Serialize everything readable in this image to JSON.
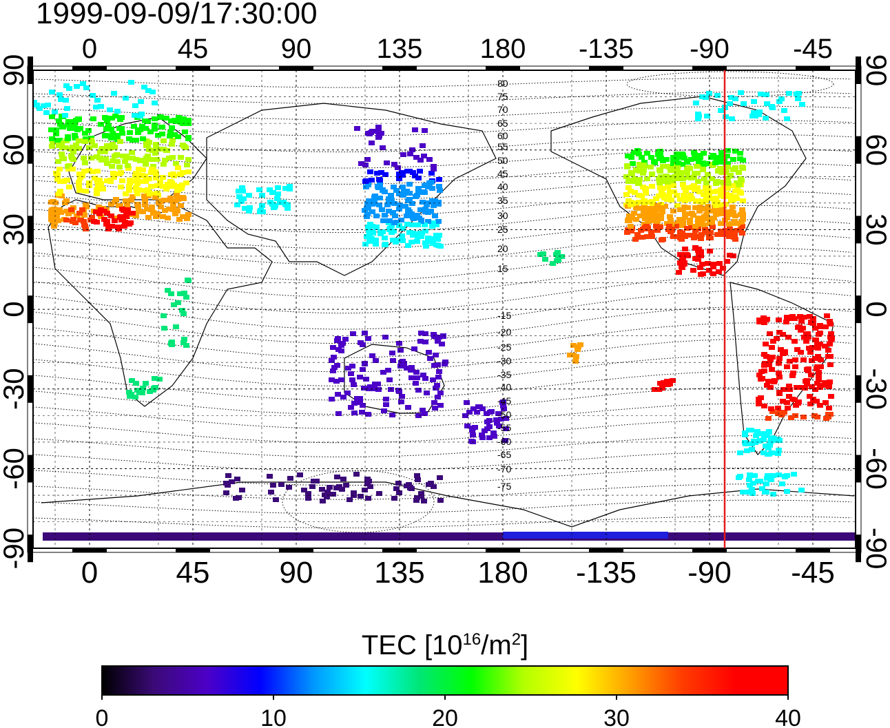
{
  "timestamp": "1999-09-09/17:30:00",
  "map": {
    "lon_ticks": [
      "0",
      "45",
      "90",
      "135",
      "180",
      "-135",
      "-90",
      "-45"
    ],
    "lat_ticks": [
      "90",
      "60",
      "30",
      "0",
      "-30",
      "-60",
      "-90"
    ],
    "contour_labels": [
      "80",
      "75",
      "70",
      "65",
      "60",
      "55",
      "50",
      "45",
      "40",
      "35",
      "30",
      "25",
      "20",
      "15",
      "-15",
      "-20",
      "-25",
      "-30",
      "-35",
      "-40",
      "-45",
      "-50",
      "-55",
      "-60",
      "-65",
      "-70",
      "-75"
    ],
    "marker_line_longitude": -82,
    "colors": {
      "marker_line": "#e31a1c",
      "grid": "#000000"
    }
  },
  "colorbar": {
    "title_main": "TEC  [10",
    "title_exp1": "16",
    "title_mid": "/m",
    "title_exp2": "2",
    "title_end": "]",
    "tick_labels": [
      "0",
      "10",
      "20",
      "30",
      "40"
    ],
    "range": [
      0,
      40
    ],
    "colors": [
      "#000000",
      "#3b0a78",
      "#4c00c8",
      "#0000ff",
      "#0096ff",
      "#00ffff",
      "#00e678",
      "#00ff00",
      "#b4ff00",
      "#ffff00",
      "#ffa000",
      "#ff3c00",
      "#ff0000",
      "#ff0000"
    ]
  }
}
